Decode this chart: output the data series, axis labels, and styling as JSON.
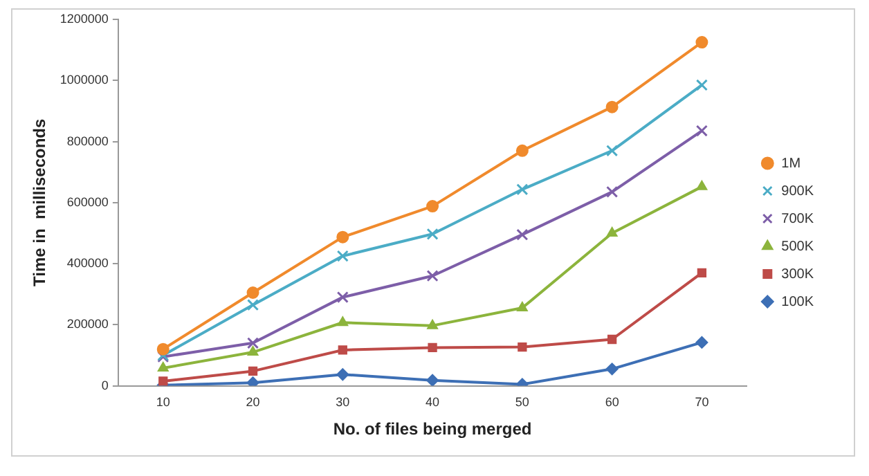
{
  "chart_data": {
    "type": "line",
    "xlabel": "No. of files being merged",
    "ylabel": "Time in  milliseconds",
    "categories": [
      "10",
      "20",
      "30",
      "40",
      "50",
      "60",
      "70"
    ],
    "ylim": [
      0,
      1200000
    ],
    "yticks": [
      0,
      200000,
      400000,
      600000,
      800000,
      1000000,
      1200000
    ],
    "grid": false,
    "legend": "right",
    "line_style": "solid",
    "series": [
      {
        "name": "1M",
        "color": "#f08a2c",
        "marker": "circle",
        "values": [
          120000,
          305000,
          487000,
          588000,
          770000,
          913000,
          1125000
        ]
      },
      {
        "name": "900K",
        "color": "#4bacc6",
        "marker": "cross",
        "values": [
          100000,
          265000,
          425000,
          497000,
          643000,
          770000,
          985000
        ]
      },
      {
        "name": "700K",
        "color": "#7d5ea8",
        "marker": "cross",
        "values": [
          95000,
          140000,
          290000,
          360000,
          495000,
          635000,
          835000
        ]
      },
      {
        "name": "500K",
        "color": "#8cb43c",
        "marker": "triangle",
        "values": [
          58000,
          110000,
          207000,
          197000,
          255000,
          500000,
          652000
        ]
      },
      {
        "name": "300K",
        "color": "#be4b48",
        "marker": "square",
        "values": [
          15000,
          48000,
          117000,
          125000,
          127000,
          152000,
          370000
        ]
      },
      {
        "name": "100K",
        "color": "#3d6fb5",
        "marker": "diamond",
        "values": [
          2000,
          10000,
          37000,
          18000,
          5000,
          55000,
          142000
        ]
      }
    ]
  }
}
